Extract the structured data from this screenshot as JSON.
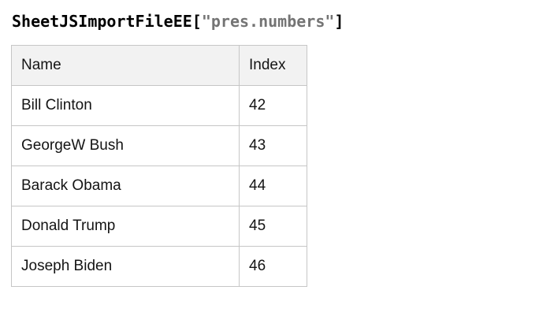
{
  "heading": {
    "function": "SheetJSImportFileEE",
    "open": "[",
    "arg": "\"pres.numbers\"",
    "close": "]"
  },
  "table": {
    "headers": {
      "name": "Name",
      "index": "Index"
    },
    "rows": [
      {
        "name": "Bill Clinton",
        "index": "42"
      },
      {
        "name": "GeorgeW Bush",
        "index": "43"
      },
      {
        "name": "Barack Obama",
        "index": "44"
      },
      {
        "name": "Donald Trump",
        "index": "45"
      },
      {
        "name": "Joseph Biden",
        "index": "46"
      }
    ]
  },
  "colors": {
    "header_background": "#f2f2f2",
    "table_border": "#c6c6c6",
    "code_string": "#747474",
    "text": "#141414"
  }
}
